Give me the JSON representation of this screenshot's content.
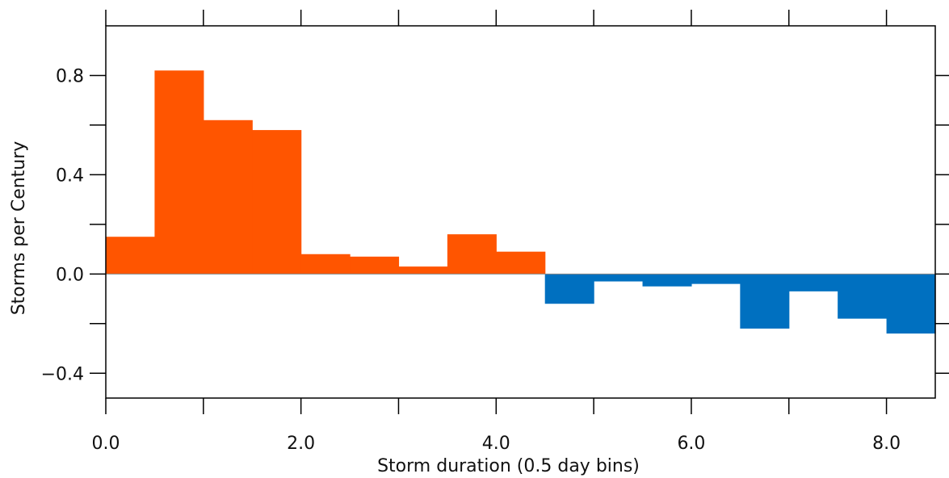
{
  "chart_data": {
    "type": "bar",
    "xlabel": "Storm duration (0.5 day bins)",
    "ylabel": "Storms per Century",
    "xlim": [
      0.0,
      8.5
    ],
    "ylim": [
      -0.5,
      1.0
    ],
    "bin_width": 0.5,
    "x_tick_labels": [
      "0.0",
      "2.0",
      "4.0",
      "6.0",
      "8.0"
    ],
    "x_tick_values": [
      0,
      2,
      4,
      6,
      8
    ],
    "y_tick_labels": [
      "0.8",
      "0.4",
      "0.0",
      "−0.4"
    ],
    "y_tick_values": [
      0.8,
      0.4,
      0.0,
      -0.4
    ],
    "positive_color": "#FF5500",
    "negative_color": "#0070C0",
    "grid": false,
    "series": [
      {
        "bin_start": [
          0.0,
          0.5,
          1.0,
          1.5,
          2.0,
          2.5,
          3.0,
          3.5,
          4.0,
          4.5,
          5.0,
          5.5,
          6.0,
          6.5,
          7.0,
          7.5,
          8.0
        ],
        "values": [
          0.15,
          0.82,
          0.62,
          0.58,
          0.08,
          0.07,
          0.03,
          0.16,
          0.09,
          -0.12,
          -0.03,
          -0.05,
          -0.04,
          -0.22,
          -0.07,
          -0.18,
          -0.24
        ]
      }
    ]
  }
}
